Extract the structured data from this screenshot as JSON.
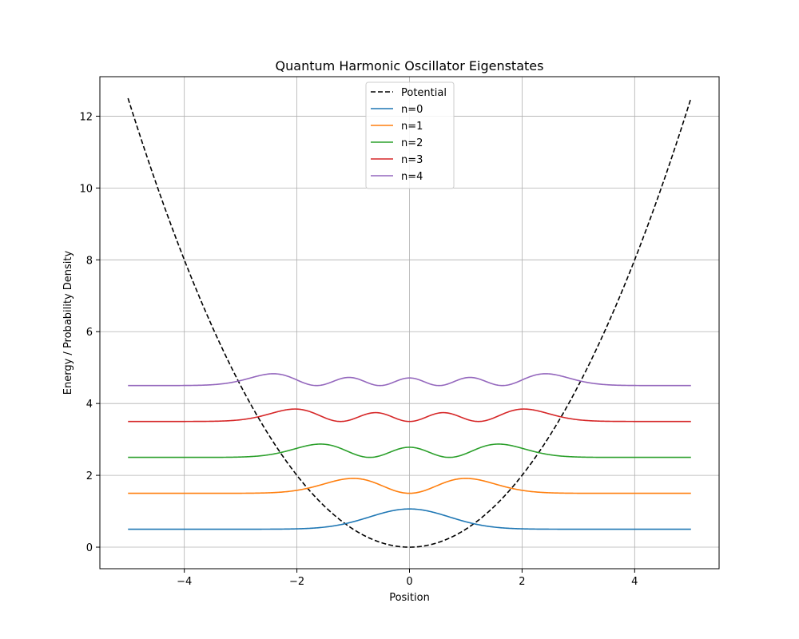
{
  "chart_data": {
    "type": "line",
    "title": "Quantum Harmonic Oscillator Eigenstates",
    "xlabel": "Position",
    "ylabel": "Energy / Probability Density",
    "xlim": [
      -5.5,
      5.5
    ],
    "ylim": [
      -0.6,
      13.1
    ],
    "x_ticks": [
      -4,
      -2,
      0,
      2,
      4
    ],
    "y_ticks": [
      0,
      2,
      4,
      6,
      8,
      10,
      12
    ],
    "grid": true,
    "legend_position": "top-center",
    "x_range": [
      -5,
      5
    ],
    "series": [
      {
        "name": "Potential",
        "color": "#000000",
        "dash": true,
        "formula": "V(x) = 0.5 x^2"
      },
      {
        "name": "n=0",
        "color": "#1f77b4",
        "baseline": 0.5
      },
      {
        "name": "n=1",
        "color": "#ff7f0e",
        "baseline": 1.5
      },
      {
        "name": "n=2",
        "color": "#2ca02c",
        "baseline": 2.5
      },
      {
        "name": "n=3",
        "color": "#d62728",
        "baseline": 3.5
      },
      {
        "name": "n=4",
        "color": "#9467bd",
        "baseline": 4.5
      }
    ]
  }
}
